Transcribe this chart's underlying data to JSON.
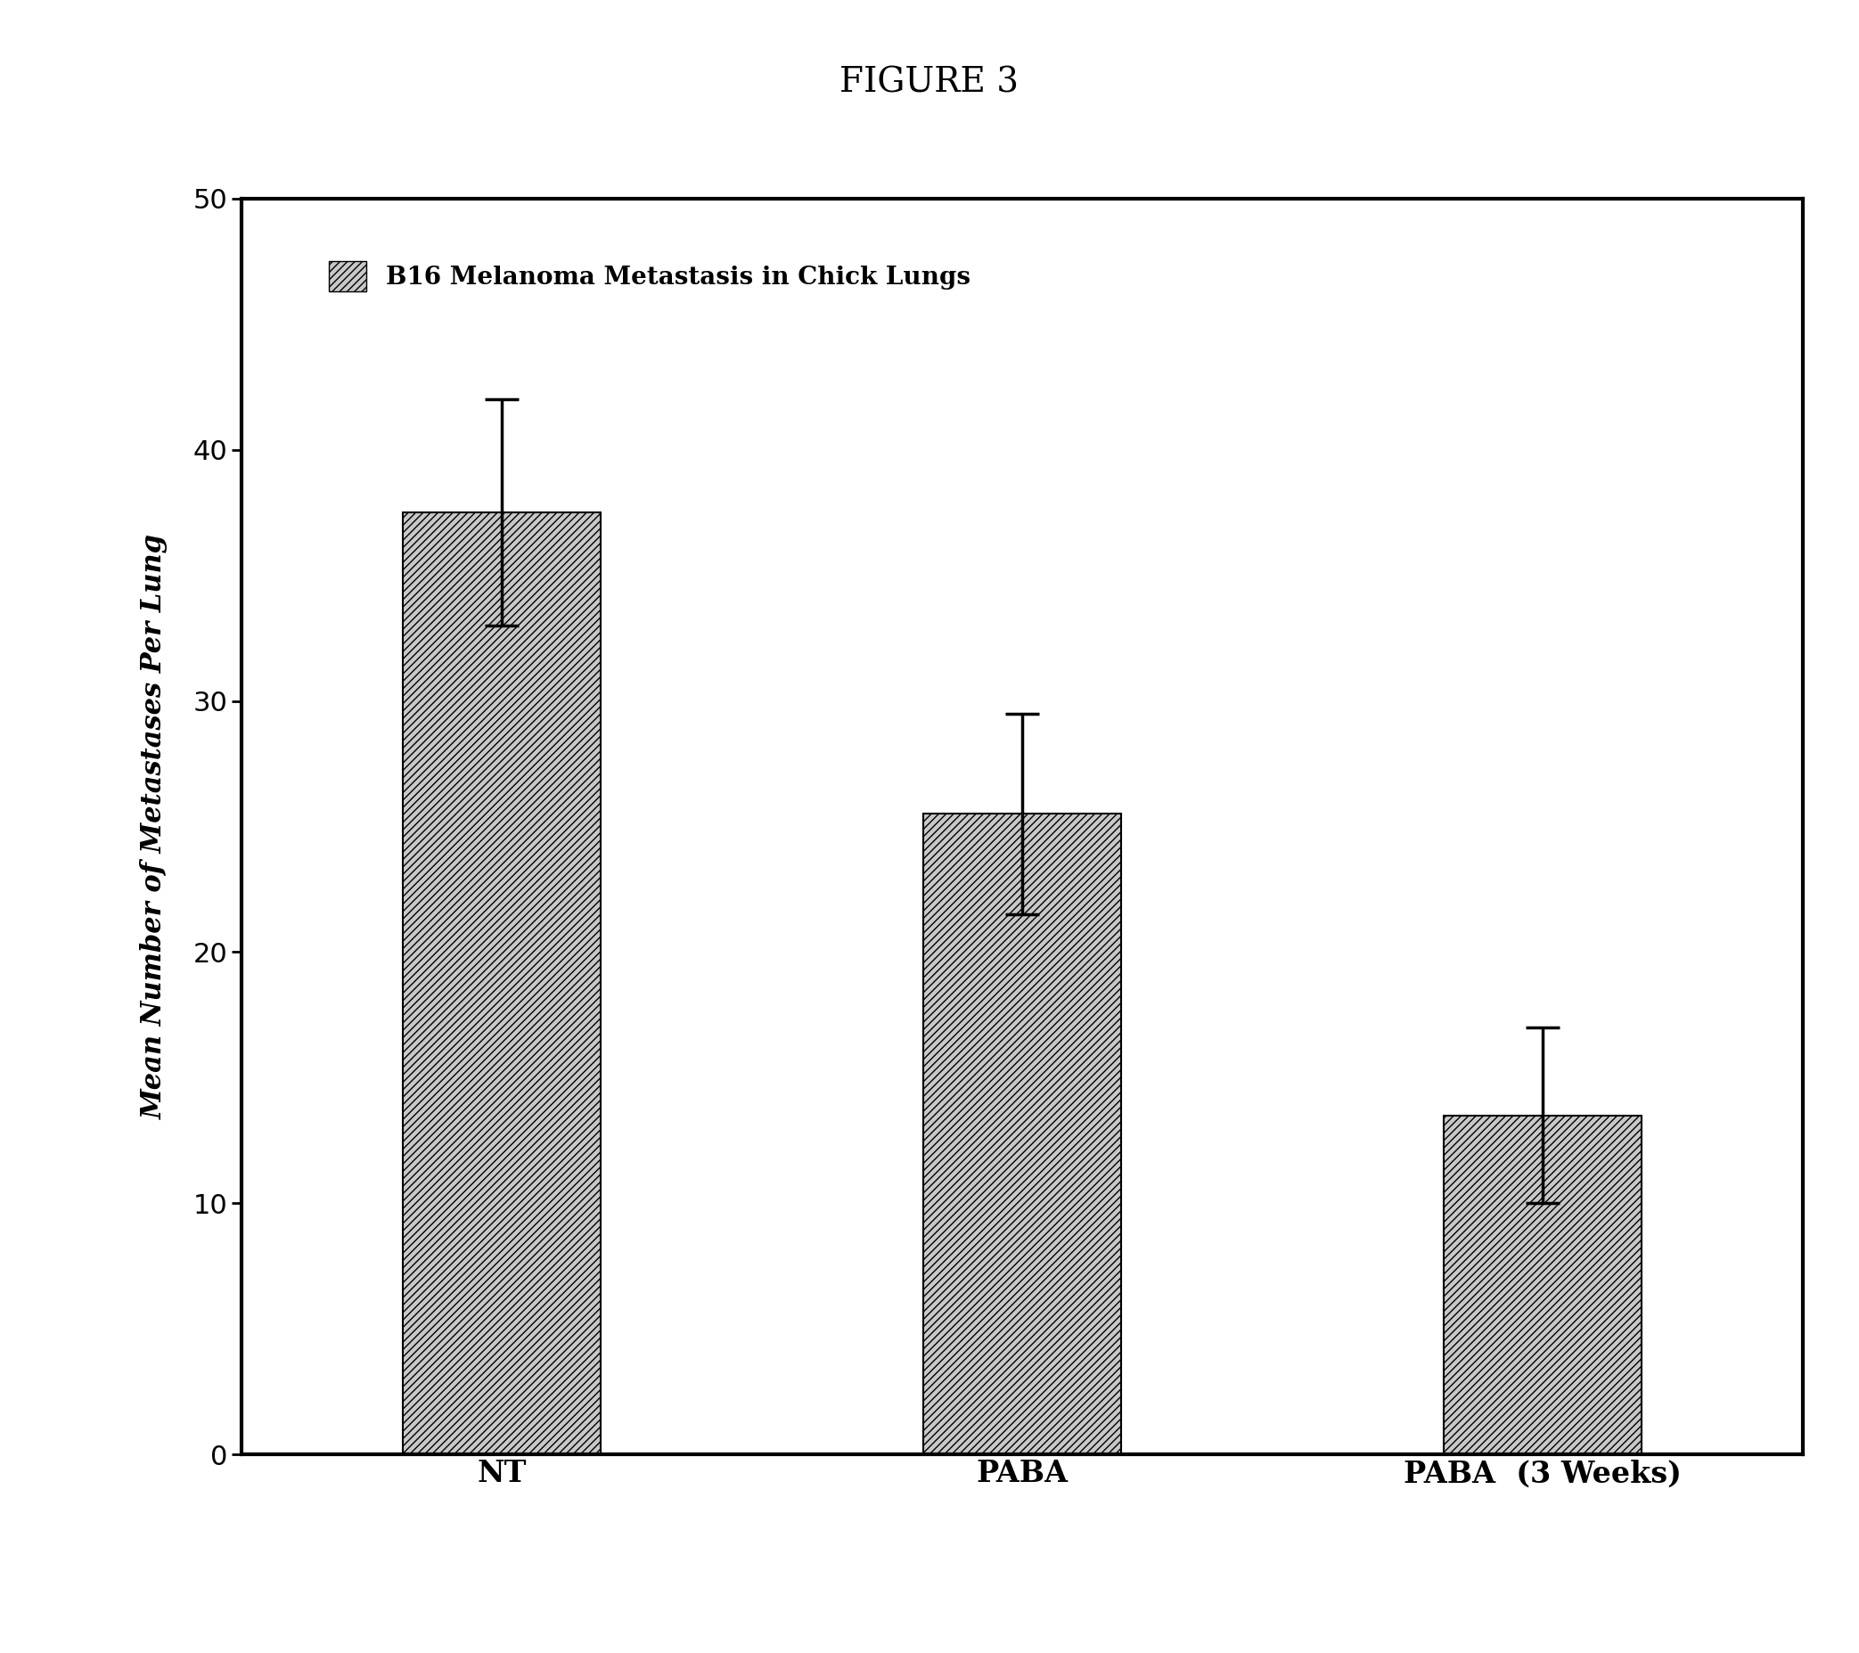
{
  "title": "FIGURE 3",
  "categories": [
    "NT",
    "PABA",
    "PABA  (3 Weeks)"
  ],
  "values": [
    37.5,
    25.5,
    13.5
  ],
  "errors": [
    4.5,
    4.0,
    3.5
  ],
  "ylabel": "Mean Number of Metastases Per Lung",
  "ylim": [
    0,
    50
  ],
  "yticks": [
    0,
    10,
    20,
    30,
    40,
    50
  ],
  "legend_label": "B16 Melanoma Metastasis in Chick Lungs",
  "bar_facecolor": "#c8c8c8",
  "hatch": "////",
  "background_color": "#ffffff",
  "title_fontsize": 28,
  "ylabel_fontsize": 22,
  "ytick_fontsize": 22,
  "legend_fontsize": 20,
  "xtick_fontsize": 24,
  "bar_width": 0.38,
  "bar_spacing": 1.0
}
